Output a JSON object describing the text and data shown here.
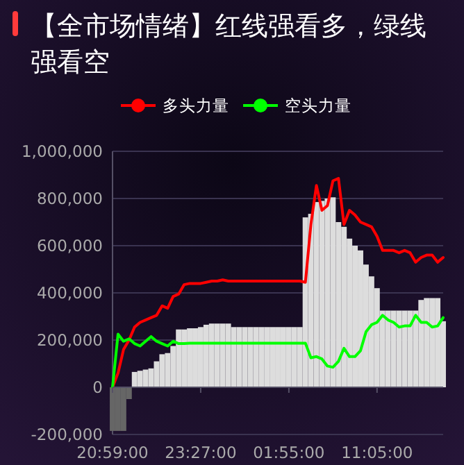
{
  "chart_data": {
    "type": "line",
    "title": "【全市场情绪】红线强看多，绿线强看空",
    "categories": [
      "20:59:00",
      null,
      null,
      null,
      null,
      null,
      null,
      null,
      null,
      null,
      null,
      null,
      null,
      null,
      null,
      null,
      "23:27:00",
      null,
      null,
      null,
      null,
      null,
      null,
      null,
      null,
      null,
      null,
      null,
      null,
      null,
      null,
      null,
      "01:55:00",
      null,
      null,
      null,
      null,
      null,
      null,
      null,
      null,
      null,
      null,
      null,
      null,
      null,
      null,
      null,
      "11:05:00",
      null,
      null,
      null,
      null,
      null,
      null,
      null,
      null,
      null,
      null,
      null,
      null
    ],
    "series": [
      {
        "type": "bar",
        "colors": [
          "#666666",
          "#666666",
          "#666666",
          "#666666",
          "#dddddd",
          "#dddddd",
          "#dddddd",
          "#dddddd",
          "#dddddd",
          "#dddddd",
          "#dddddd",
          "#dddddd",
          "#dddddd",
          "#dddddd",
          "#dddddd",
          "#dddddd",
          "#dddddd",
          "#dddddd",
          "#dddddd",
          "#dddddd",
          "#dddddd",
          "#dddddd",
          "#dddddd",
          "#dddddd",
          "#dddddd",
          "#dddddd",
          "#dddddd",
          "#dddddd",
          "#dddddd",
          "#dddddd",
          "#dddddd",
          "#dddddd",
          "#dddddd",
          "#dddddd",
          "#dddddd",
          "#dddddd",
          "#dddddd",
          "#dddddd",
          "#dddddd",
          "#dddddd",
          "#dddddd",
          "#dddddd",
          "#dddddd",
          "#dddddd",
          "#dddddd",
          "#dddddd",
          "#dddddd",
          "#dddddd",
          "#dddddd",
          "#dddddd",
          "#dddddd",
          "#dddddd",
          "#dddddd",
          "#dddddd",
          "#dddddd",
          "#dddddd",
          "#dddddd",
          "#dddddd",
          "#dddddd",
          "#dddddd",
          "#dddddd"
        ],
        "values": [
          -185000,
          -185000,
          -185000,
          -50000,
          65000,
          70000,
          75000,
          80000,
          110000,
          140000,
          145000,
          175000,
          245000,
          245000,
          250000,
          250000,
          255000,
          265000,
          270000,
          270000,
          270000,
          270000,
          255000,
          255000,
          255000,
          255000,
          255000,
          255000,
          255000,
          255000,
          255000,
          255000,
          255000,
          255000,
          255000,
          720000,
          735000,
          785000,
          790000,
          800000,
          805000,
          700000,
          680000,
          630000,
          600000,
          580000,
          520000,
          470000,
          420000,
          325000,
          325000,
          325000,
          325000,
          325000,
          325000,
          325000,
          370000,
          378000,
          378000,
          378000,
          280000
        ]
      },
      {
        "name": "多头力量",
        "color": "#ff0000",
        "values": [
          0,
          60000,
          160000,
          200000,
          255000,
          275000,
          285000,
          295000,
          305000,
          345000,
          335000,
          385000,
          395000,
          435000,
          440000,
          440000,
          440000,
          445000,
          450000,
          450000,
          455000,
          450000,
          450000,
          450000,
          450000,
          450000,
          450000,
          450000,
          450000,
          450000,
          450000,
          450000,
          450000,
          450000,
          450000,
          445000,
          690000,
          855000,
          750000,
          770000,
          875000,
          885000,
          690000,
          750000,
          730000,
          700000,
          690000,
          680000,
          640000,
          580000,
          580000,
          580000,
          570000,
          580000,
          570000,
          530000,
          550000,
          560000,
          560000,
          530000,
          550000
        ]
      },
      {
        "name": "空头力量",
        "color": "#00ff00",
        "values": [
          0,
          225000,
          195000,
          205000,
          185000,
          175000,
          195000,
          215000,
          195000,
          185000,
          175000,
          195000,
          185000,
          185000,
          187000,
          187000,
          187000,
          187000,
          187000,
          187000,
          187000,
          187000,
          187000,
          187000,
          187000,
          187000,
          187000,
          187000,
          187000,
          187000,
          187000,
          187000,
          187000,
          187000,
          187000,
          187000,
          125000,
          130000,
          120000,
          90000,
          85000,
          110000,
          165000,
          130000,
          130000,
          155000,
          235000,
          265000,
          275000,
          305000,
          285000,
          275000,
          255000,
          260000,
          260000,
          305000,
          275000,
          275000,
          255000,
          260000,
          295000
        ]
      }
    ],
    "ylim": [
      -200000,
      1000000
    ],
    "yticks": [
      {
        "value": -200000,
        "label": "-200,000"
      },
      {
        "value": 0,
        "label": "0"
      },
      {
        "value": 200000,
        "label": "200,000"
      },
      {
        "value": 400000,
        "label": "400,000"
      },
      {
        "value": 600000,
        "label": "600,000"
      },
      {
        "value": 800000,
        "label": "800,000"
      },
      {
        "value": 1000000,
        "label": "1,000,000"
      }
    ],
    "grid": "y",
    "legend": "top",
    "marker": "none",
    "line_style": "solid"
  }
}
